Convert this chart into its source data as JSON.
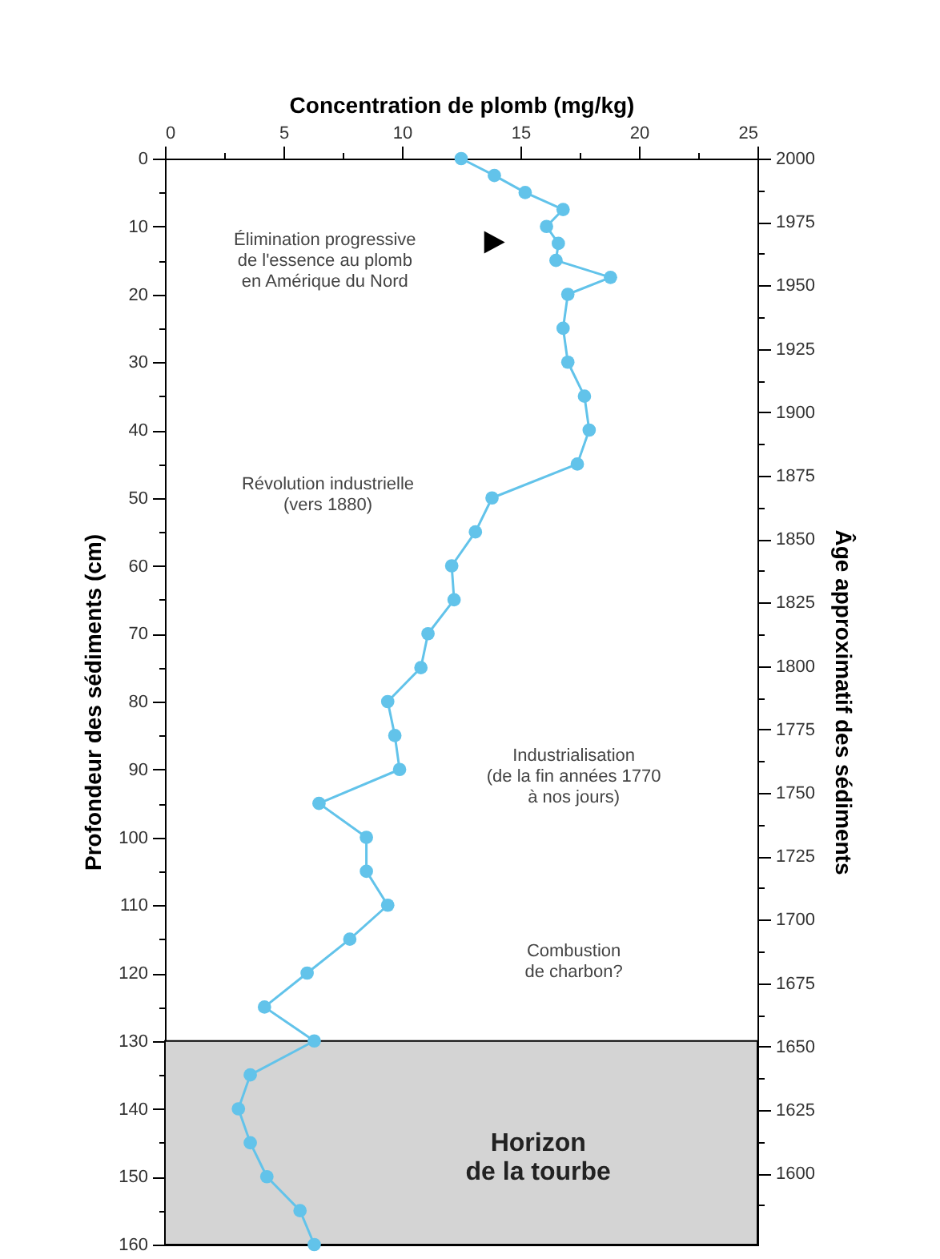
{
  "chart_data": {
    "type": "line",
    "xlabel": "Concentration de plomb (mg/kg)",
    "ylabel": "Profondeur des sédiments (cm)",
    "y2label": "Âge approximatif des sédiments",
    "xlim": [
      0,
      25
    ],
    "xticks": [
      0,
      {
        "value": 2.5,
        "label": null
      },
      5,
      {
        "value": 7.5,
        "label": null
      },
      10,
      {
        "value": 12.5,
        "label": null
      },
      15,
      {
        "value": 17.5,
        "label": null
      },
      20,
      {
        "value": 22.5,
        "label": null
      },
      25
    ],
    "ylim": [
      160,
      0
    ],
    "yticks": [
      0,
      {
        "value": 5,
        "label": null
      },
      10,
      {
        "value": 15,
        "label": null
      },
      20,
      {
        "value": 25,
        "label": null
      },
      30,
      {
        "value": 35,
        "label": null
      },
      40,
      {
        "value": 45,
        "label": null
      },
      50,
      {
        "value": 55,
        "label": null
      },
      60,
      {
        "value": 65,
        "label": null
      },
      70,
      {
        "value": 75,
        "label": null
      },
      80,
      {
        "value": 85,
        "label": null
      },
      90,
      {
        "value": 95,
        "label": null
      },
      100,
      {
        "value": 105,
        "label": null
      },
      110,
      {
        "value": 115,
        "label": null
      },
      120,
      {
        "value": 125,
        "label": null
      },
      130,
      {
        "value": 135,
        "label": null
      },
      140,
      {
        "value": 145,
        "label": null
      },
      150,
      {
        "value": 155,
        "label": null
      },
      160
    ],
    "y2lim": [
      1572,
      2000
    ],
    "y2ticks": [
      2000,
      {
        "value": 1987.5,
        "label": null
      },
      1975,
      {
        "value": 1962.5,
        "label": null
      },
      1950,
      {
        "value": 1937.5,
        "label": null
      },
      1925,
      {
        "value": 1912.5,
        "label": null
      },
      1900,
      {
        "value": 1887.5,
        "label": null
      },
      1875,
      {
        "value": 1862.5,
        "label": null
      },
      1850,
      {
        "value": 1837.5,
        "label": null
      },
      1825,
      {
        "value": 1812.5,
        "label": null
      },
      1800,
      {
        "value": 1787.5,
        "label": null
      },
      1775,
      {
        "value": 1762.5,
        "label": null
      },
      1750,
      {
        "value": 1737.5,
        "label": null
      },
      1725,
      {
        "value": 1712.5,
        "label": null
      },
      1700,
      {
        "value": 1687.5,
        "label": null
      },
      1675,
      {
        "value": 1662.5,
        "label": null
      },
      1650,
      {
        "value": 1637.5,
        "label": null
      },
      1625,
      {
        "value": 1612.5,
        "label": null
      },
      1600,
      {
        "value": 1587.5,
        "label": null
      }
    ],
    "series": [
      {
        "color": "#62c3ea",
        "x": [
          12.5,
          13.9,
          15.2,
          16.8,
          16.1,
          16.6,
          16.5,
          18.8,
          17.0,
          16.8,
          17.0,
          17.7,
          17.9,
          17.4,
          13.8,
          13.1,
          12.1,
          12.2,
          11.1,
          10.8,
          9.4,
          9.7,
          9.9,
          6.5,
          8.5,
          8.5,
          9.4,
          7.8,
          6.0,
          4.2,
          6.3,
          3.6,
          3.1,
          3.6,
          4.3,
          5.7,
          6.3
        ],
        "values": [
          0,
          2.5,
          5,
          7.5,
          10,
          12.5,
          15,
          17.5,
          20,
          25,
          30,
          35,
          40,
          45,
          50,
          55,
          60,
          65,
          70,
          75,
          80,
          85,
          90,
          95,
          100,
          105,
          110,
          115,
          120,
          125,
          130,
          135,
          140,
          145,
          150,
          155,
          160
        ]
      }
    ],
    "bands": [
      {
        "axis": "y",
        "from": 130,
        "to": 160,
        "label": "Horizon\nde la tourbe",
        "color": "#d4d4d4"
      }
    ],
    "annotations": [
      "Élimination progressive\nde l'essence au plomb\nen Amérique du Nord",
      "Révolution industrielle\n(vers 1880)",
      "Industrialisation\n(de la fin années 1770\nà nos jours)",
      "Combustion\nde charbon?"
    ],
    "marker": "circle",
    "line_style": "solid",
    "grid": false
  }
}
